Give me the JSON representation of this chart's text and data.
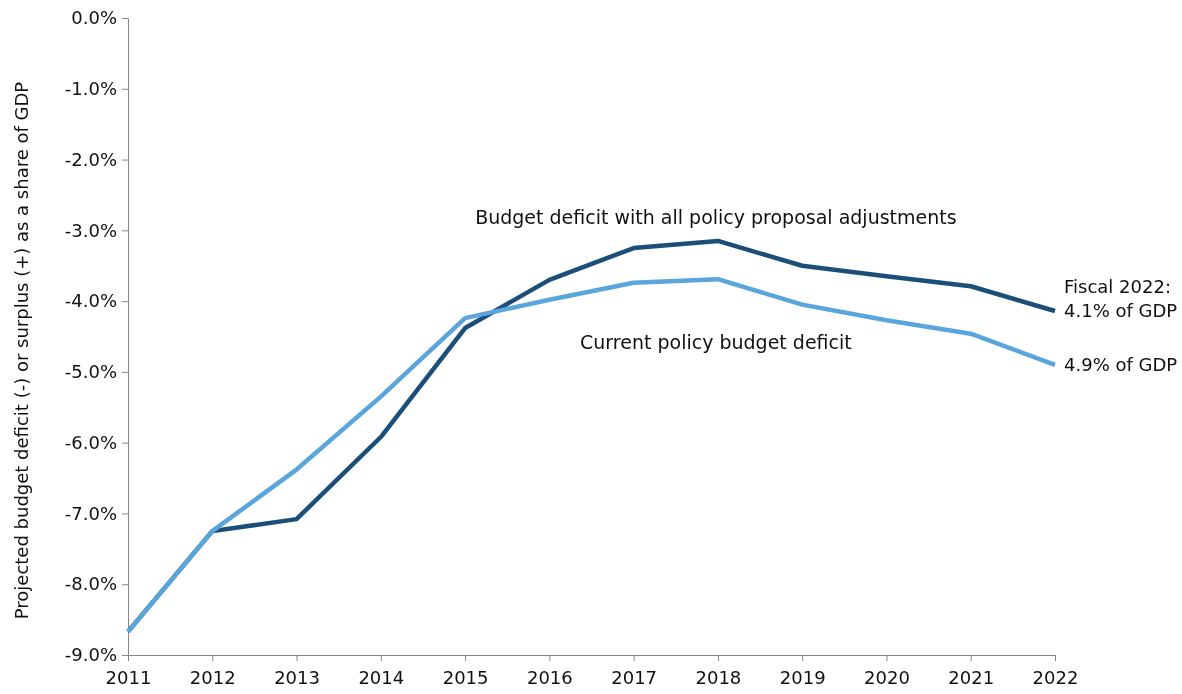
{
  "chart_data": {
    "type": "line",
    "ylabel": "Projected budget deficit (-) or surplus (+) as a share of GDP",
    "x": [
      2011,
      2012,
      2013,
      2014,
      2015,
      2016,
      2017,
      2018,
      2019,
      2020,
      2021,
      2022
    ],
    "xlim": [
      2011,
      2022
    ],
    "xticks": [
      2011,
      2012,
      2013,
      2014,
      2015,
      2016,
      2017,
      2018,
      2019,
      2020,
      2021,
      2022
    ],
    "ylim": [
      -9,
      0
    ],
    "yticks": [
      {
        "value": -9,
        "label": "-9.0%"
      },
      {
        "value": -8,
        "label": "-8.0%"
      },
      {
        "value": -7,
        "label": "-7.0%"
      },
      {
        "value": -6,
        "label": "-6.0%"
      },
      {
        "value": -5,
        "label": "-5.0%"
      },
      {
        "value": -4,
        "label": "-4.0%"
      },
      {
        "value": -3,
        "label": "-3.0%"
      },
      {
        "value": -2,
        "label": "-2.0%"
      },
      {
        "value": -1,
        "label": "-1.0%"
      },
      {
        "value": 0,
        "label": "0.0%"
      }
    ],
    "series": [
      {
        "name": "Budget deficit with all policy proposal adjustments",
        "color": "#1b4f7a",
        "values": [
          -8.67,
          -7.25,
          -7.08,
          -5.92,
          -4.38,
          -3.7,
          -3.25,
          -3.15,
          -3.5,
          -3.65,
          -3.79,
          -4.14
        ]
      },
      {
        "name": "Current policy budget deficit",
        "color": "#5aa5dc",
        "values": [
          -8.67,
          -7.25,
          -6.38,
          -5.35,
          -4.24,
          -3.98,
          -3.74,
          -3.69,
          -4.05,
          -4.27,
          -4.46,
          -4.9
        ]
      }
    ],
    "annotations": [
      {
        "text": "Fiscal 2022: 4.1% of GDP",
        "x": 2022,
        "y": -4.14
      },
      {
        "text": "4.9% of GDP",
        "x": 2022,
        "y": -4.9
      }
    ],
    "grid": false,
    "legend": false,
    "marker": "none",
    "line_style": "solid"
  }
}
